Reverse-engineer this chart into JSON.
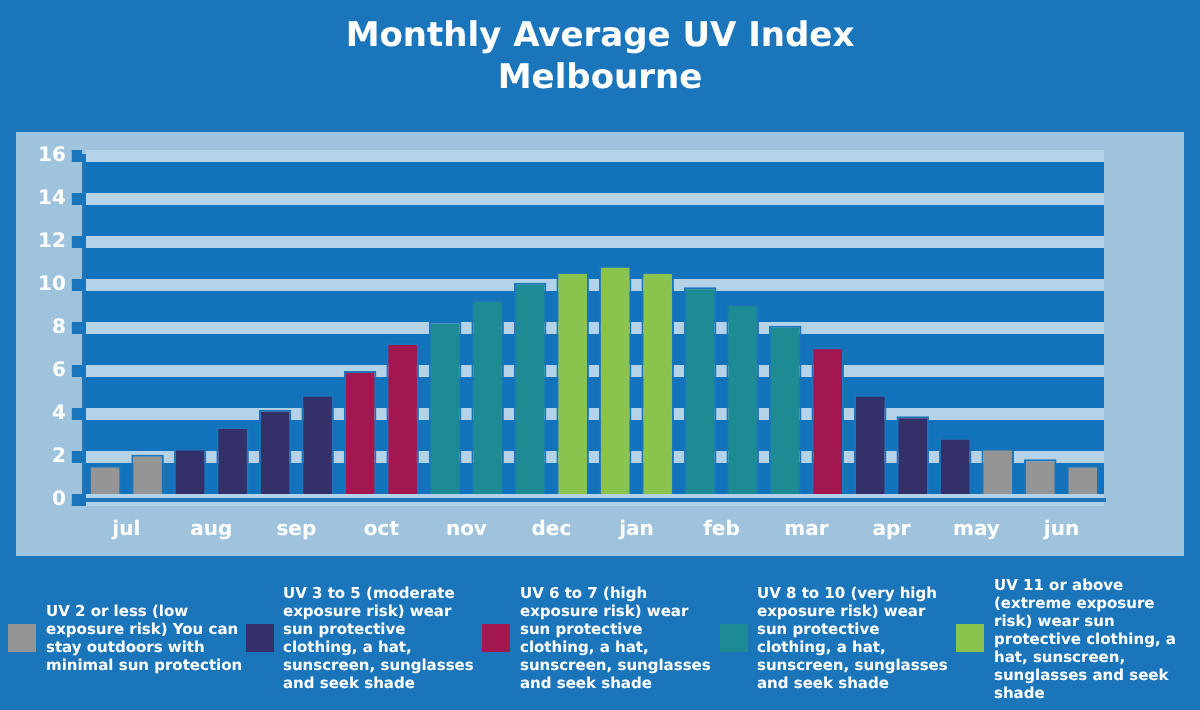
{
  "chart_data": {
    "type": "bar",
    "title": "Monthly Average UV Index",
    "subtitle": "Melbourne",
    "categories": [
      "jul",
      null,
      "aug",
      null,
      "sep",
      null,
      "oct",
      null,
      "nov",
      null,
      "dec",
      null,
      "jan",
      null,
      "feb",
      null,
      "mar",
      null,
      "apr",
      null,
      "may",
      null,
      "jun",
      null
    ],
    "stacked": true,
    "legend": "bottom",
    "grid": "y",
    "ylim": [
      0,
      16
    ],
    "yticks": [
      0,
      2,
      4,
      6,
      8,
      10,
      12,
      14,
      16
    ],
    "series": [
      {
        "name": "UV 2 or less (low exposure risk) You can stay outdoors with minimal sun protection",
        "color": "#959595",
        "values": [
          1.6,
          2.1,
          null,
          null,
          null,
          null,
          null,
          null,
          null,
          null,
          null,
          null,
          null,
          null,
          null,
          null,
          null,
          null,
          null,
          null,
          null,
          2.4,
          1.9,
          1.6
        ]
      },
      {
        "name": "UV 3 to 5 (moderate exposure risk) wear sun protective clothing, a hat, sunscreen, sunglasses and seek shade",
        "color": "#33306a",
        "values": [
          null,
          null,
          2.4,
          3.4,
          4.2,
          4.9,
          null,
          null,
          null,
          null,
          null,
          null,
          null,
          null,
          null,
          null,
          null,
          null,
          4.9,
          3.9,
          2.9,
          null,
          null,
          null
        ]
      },
      {
        "name": "UV 6 to 7 (high exposure risk) wear sun protective clothing, a hat, sunscreen, sunglasses and seek shade",
        "color": "#a3174f",
        "values": [
          null,
          null,
          null,
          null,
          null,
          null,
          6.0,
          7.3,
          null,
          null,
          null,
          null,
          null,
          null,
          null,
          null,
          null,
          7.1,
          null,
          null,
          null,
          null,
          null,
          null
        ]
      },
      {
        "name": "UV 8 to 10 (very high exposure risk) wear sun protective clothing, a hat, sunscreen, sunglasses and seek shade",
        "color": "#1e8a93",
        "values": [
          null,
          null,
          null,
          null,
          null,
          null,
          null,
          null,
          8.3,
          9.3,
          10.1,
          null,
          null,
          null,
          9.9,
          9.1,
          8.1,
          null,
          null,
          null,
          null,
          null,
          null,
          null
        ]
      },
      {
        "name": "UV 11 or above (extreme exposure risk) wear sun protective clothing, a hat, sunscreen, sunglasses and seek shade",
        "color": "#8bc34f",
        "values": [
          null,
          null,
          null,
          null,
          null,
          null,
          null,
          null,
          null,
          null,
          null,
          10.6,
          10.9,
          10.6,
          null,
          null,
          null,
          null,
          null,
          null,
          null,
          null,
          null,
          null
        ]
      }
    ]
  }
}
